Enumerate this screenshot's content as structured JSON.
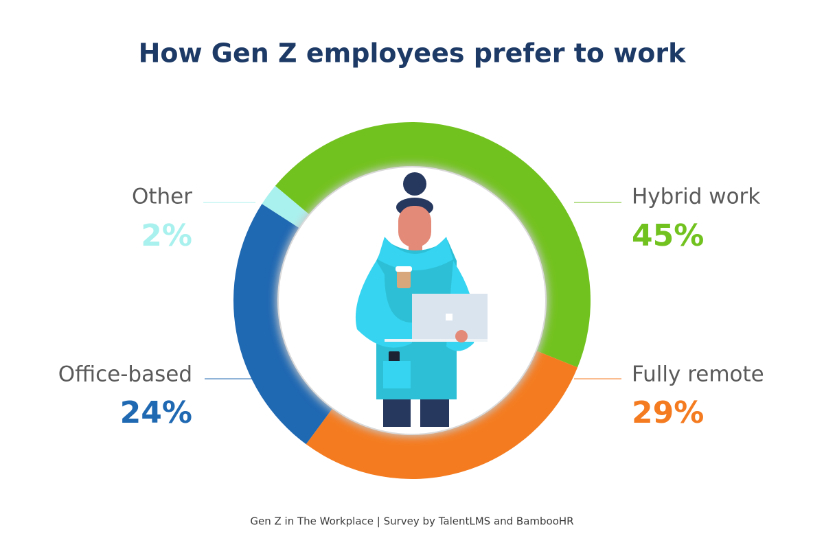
{
  "chart_data": {
    "type": "donut",
    "title": "How Gen Z employees prefer to work",
    "categories": [
      "Hybrid work",
      "Fully remote",
      "Office-based",
      "Other"
    ],
    "values": [
      45,
      29,
      24,
      2
    ],
    "value_labels": [
      "45%",
      "29%",
      "24%",
      "2%"
    ],
    "colors": [
      "#72c21f",
      "#f47b20",
      "#1f68b2",
      "#a9f1ee"
    ],
    "source": "Gen Z in The Workplace | Survey by TalentLMS and BambooHR"
  }
}
